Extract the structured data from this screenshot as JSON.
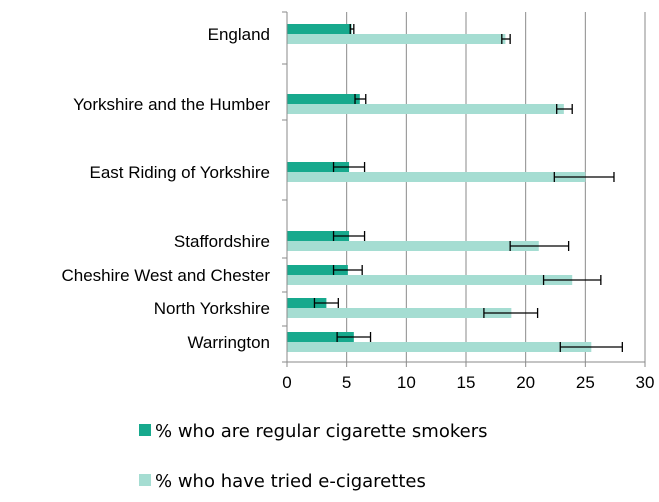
{
  "chart_data": {
    "type": "bar",
    "orientation": "horizontal",
    "title": "",
    "xlabel": "",
    "ylabel": "",
    "xlim": [
      0,
      30
    ],
    "x_ticks": [
      0,
      5,
      10,
      15,
      20,
      25,
      30
    ],
    "grid": "vertical",
    "legend_position": "bottom",
    "categories": [
      "England",
      "Yorkshire and the Humber",
      "East Riding of Yorkshire",
      "Staffordshire",
      "Cheshire West and Chester",
      "North Yorkshire",
      "Warrington"
    ],
    "series": [
      {
        "name": "% who are regular cigarette smokers",
        "color": "#17a98d",
        "values": [
          5.4,
          6.1,
          5.2,
          5.2,
          5.1,
          3.3,
          5.6
        ],
        "error_low": [
          5.3,
          5.7,
          3.9,
          3.9,
          3.9,
          2.3,
          4.2
        ],
        "error_high": [
          5.6,
          6.6,
          6.5,
          6.5,
          6.3,
          4.3,
          7.0
        ]
      },
      {
        "name": "% who have tried e-cigarettes",
        "color": "#a5ddd2",
        "values": [
          18.3,
          23.2,
          25.0,
          21.1,
          23.9,
          18.8,
          25.5
        ],
        "error_low": [
          18.0,
          22.6,
          22.4,
          18.7,
          21.5,
          16.5,
          22.9
        ],
        "error_high": [
          18.7,
          23.9,
          27.4,
          23.6,
          26.3,
          21.0,
          28.1
        ]
      }
    ]
  }
}
